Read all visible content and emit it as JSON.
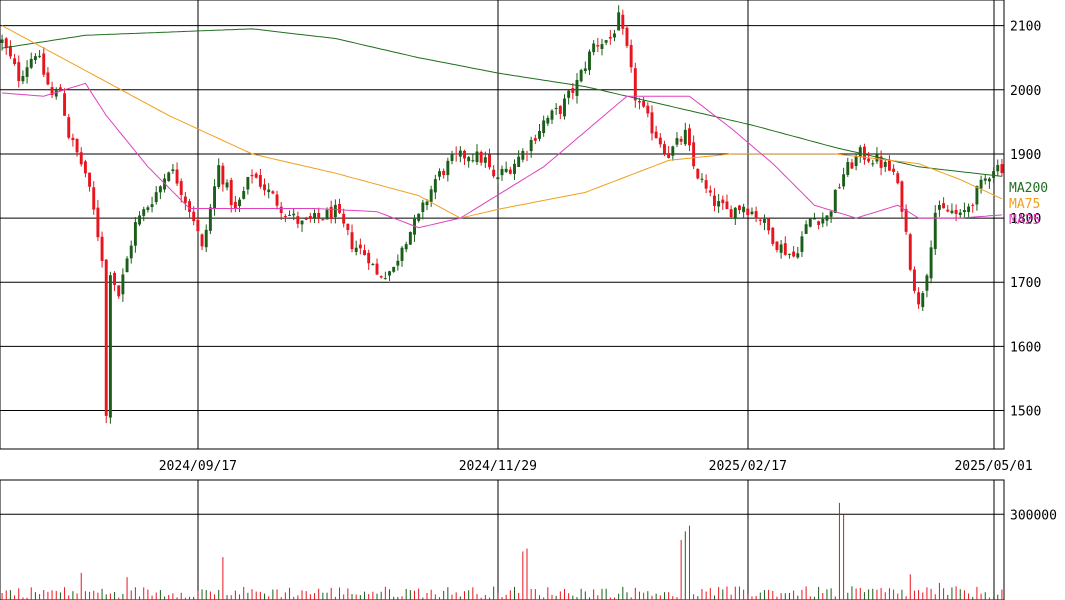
{
  "chart_data": {
    "type": "candlestick",
    "colors": {
      "up": "#1a5e1a",
      "down": "#e8141e",
      "ma200": "#1e6e1e",
      "ma75": "#f0a020",
      "ma25": "#e040c0",
      "grid": "#000000",
      "volume": "#e8141e"
    },
    "price_ylim": [
      1440,
      2140
    ],
    "price_yticks": [
      "1500",
      "1600",
      "1700",
      "1800",
      "1900",
      "2000",
      "2100"
    ],
    "volume_ylim": [
      0,
      420000
    ],
    "volume_yticks": [
      "300000"
    ],
    "x_tick_labels": [
      "2024/09/17",
      "2024/11/29",
      "2025/02/17",
      "2025/05/01"
    ],
    "x_tick_index": [
      47,
      119,
      179,
      238
    ],
    "num_bars": 241,
    "legend": [
      {
        "name": "MA200",
        "color": "#1e6e1e"
      },
      {
        "name": "MA75",
        "color": "#f0a020"
      },
      {
        "name": "MA25",
        "color": "#e040c0"
      }
    ],
    "ohlc_waypoints": [
      [
        0,
        2075
      ],
      [
        4,
        2020
      ],
      [
        8,
        2060
      ],
      [
        12,
        1990
      ],
      [
        14,
        2000
      ],
      [
        16,
        1930
      ],
      [
        20,
        1870
      ],
      [
        22,
        1810
      ],
      [
        24,
        1740
      ],
      [
        25,
        1490
      ],
      [
        26,
        1720
      ],
      [
        28,
        1680
      ],
      [
        32,
        1790
      ],
      [
        36,
        1830
      ],
      [
        38,
        1850
      ],
      [
        40,
        1880
      ],
      [
        42,
        1860
      ],
      [
        46,
        1800
      ],
      [
        48,
        1750
      ],
      [
        52,
        1880
      ],
      [
        56,
        1810
      ],
      [
        60,
        1870
      ],
      [
        64,
        1840
      ],
      [
        68,
        1810
      ],
      [
        72,
        1790
      ],
      [
        76,
        1800
      ],
      [
        80,
        1810
      ],
      [
        84,
        1760
      ],
      [
        88,
        1740
      ],
      [
        90,
        1710
      ],
      [
        94,
        1720
      ],
      [
        96,
        1760
      ],
      [
        100,
        1800
      ],
      [
        104,
        1860
      ],
      [
        108,
        1890
      ],
      [
        112,
        1900
      ],
      [
        116,
        1890
      ],
      [
        118,
        1860
      ],
      [
        122,
        1880
      ],
      [
        126,
        1910
      ],
      [
        130,
        1950
      ],
      [
        134,
        1970
      ],
      [
        138,
        2010
      ],
      [
        142,
        2070
      ],
      [
        146,
        2080
      ],
      [
        148,
        2110
      ],
      [
        150,
        2060
      ],
      [
        152,
        1990
      ],
      [
        156,
        1940
      ],
      [
        160,
        1900
      ],
      [
        164,
        1930
      ],
      [
        166,
        1880
      ],
      [
        170,
        1830
      ],
      [
        174,
        1810
      ],
      [
        178,
        1820
      ],
      [
        182,
        1800
      ],
      [
        186,
        1760
      ],
      [
        190,
        1740
      ],
      [
        194,
        1800
      ],
      [
        198,
        1800
      ],
      [
        202,
        1870
      ],
      [
        206,
        1900
      ],
      [
        210,
        1890
      ],
      [
        214,
        1870
      ],
      [
        216,
        1820
      ],
      [
        218,
        1730
      ],
      [
        220,
        1660
      ],
      [
        222,
        1720
      ],
      [
        224,
        1810
      ],
      [
        228,
        1810
      ],
      [
        230,
        1800
      ],
      [
        234,
        1840
      ],
      [
        238,
        1880
      ],
      [
        240,
        1880
      ]
    ],
    "ma200": [
      [
        0,
        2065
      ],
      [
        20,
        2085
      ],
      [
        40,
        2090
      ],
      [
        60,
        2095
      ],
      [
        80,
        2080
      ],
      [
        100,
        2050
      ],
      [
        120,
        2025
      ],
      [
        140,
        2005
      ],
      [
        160,
        1975
      ],
      [
        180,
        1945
      ],
      [
        200,
        1910
      ],
      [
        220,
        1880
      ],
      [
        240,
        1865
      ]
    ],
    "ma75": [
      [
        0,
        2100
      ],
      [
        20,
        2030
      ],
      [
        40,
        1960
      ],
      [
        60,
        1900
      ],
      [
        80,
        1870
      ],
      [
        100,
        1835
      ],
      [
        110,
        1800
      ],
      [
        120,
        1815
      ],
      [
        140,
        1840
      ],
      [
        160,
        1890
      ],
      [
        175,
        1900
      ],
      [
        200,
        1900
      ],
      [
        220,
        1885
      ],
      [
        230,
        1860
      ],
      [
        240,
        1830
      ]
    ],
    "ma25": [
      [
        0,
        1995
      ],
      [
        10,
        1990
      ],
      [
        20,
        2010
      ],
      [
        25,
        1960
      ],
      [
        35,
        1880
      ],
      [
        45,
        1815
      ],
      [
        60,
        1815
      ],
      [
        75,
        1815
      ],
      [
        90,
        1810
      ],
      [
        100,
        1785
      ],
      [
        110,
        1800
      ],
      [
        120,
        1840
      ],
      [
        130,
        1880
      ],
      [
        140,
        1935
      ],
      [
        150,
        1990
      ],
      [
        165,
        1990
      ],
      [
        175,
        1940
      ],
      [
        185,
        1885
      ],
      [
        195,
        1820
      ],
      [
        205,
        1800
      ],
      [
        215,
        1820
      ],
      [
        220,
        1800
      ],
      [
        230,
        1800
      ],
      [
        240,
        1805
      ]
    ],
    "volume_spikes": [
      [
        19,
        95000
      ],
      [
        30,
        80000
      ],
      [
        53,
        150000
      ],
      [
        125,
        170000
      ],
      [
        126,
        180000
      ],
      [
        163,
        210000
      ],
      [
        164,
        240000
      ],
      [
        165,
        260000
      ],
      [
        201,
        340000
      ],
      [
        202,
        300000
      ],
      [
        218,
        90000
      ],
      [
        225,
        60000
      ]
    ]
  }
}
